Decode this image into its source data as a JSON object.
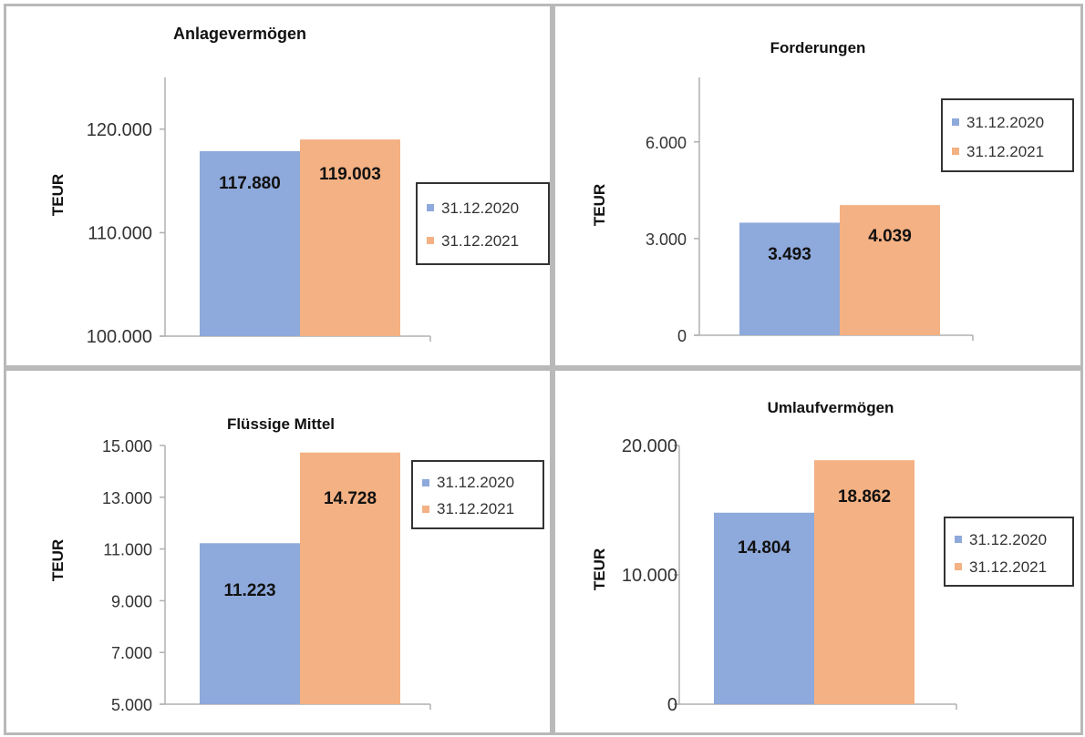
{
  "colors": {
    "series_2020": "#8ea9db",
    "series_2021": "#f4b183",
    "axis": "#b0b0b0",
    "panel_border": "#b9b9b9"
  },
  "chart_data": [
    {
      "type": "bar",
      "title": "Anlagevermögen",
      "ylabel": "TEUR",
      "ylim": [
        100000,
        125000
      ],
      "yticks": [
        100000,
        110000,
        120000
      ],
      "ytick_labels": [
        "100.000",
        "110.000",
        "120.000"
      ],
      "series": [
        {
          "name": "31.12.2020",
          "values": [
            117880
          ],
          "labels": [
            "117.880"
          ]
        },
        {
          "name": "31.12.2021",
          "values": [
            119003
          ],
          "labels": [
            "119.003"
          ]
        }
      ],
      "legend": "right"
    },
    {
      "type": "bar",
      "title": "Forderungen",
      "ylabel": "TEUR",
      "ylim": [
        0,
        8000
      ],
      "yticks": [
        0,
        3000,
        6000
      ],
      "ytick_labels": [
        "0",
        "3.000",
        "6.000"
      ],
      "series": [
        {
          "name": "31.12.2020",
          "values": [
            3493
          ],
          "labels": [
            "3.493"
          ]
        },
        {
          "name": "31.12.2021",
          "values": [
            4039
          ],
          "labels": [
            "4.039"
          ]
        }
      ],
      "legend": "top-right"
    },
    {
      "type": "bar",
      "title": "Flüssige Mittel",
      "ylabel": "TEUR",
      "ylim": [
        5000,
        15000
      ],
      "yticks": [
        5000,
        7000,
        9000,
        11000,
        13000,
        15000
      ],
      "ytick_labels": [
        "5.000",
        "7.000",
        "9.000",
        "11.000",
        "13.000",
        "15.000"
      ],
      "series": [
        {
          "name": "31.12.2020",
          "values": [
            11223
          ],
          "labels": [
            "11.223"
          ]
        },
        {
          "name": "31.12.2021",
          "values": [
            14728
          ],
          "labels": [
            "14.728"
          ]
        }
      ],
      "legend": "top-right"
    },
    {
      "type": "bar",
      "title": "Umlaufvermögen",
      "ylabel": "TEUR",
      "ylim": [
        0,
        20000
      ],
      "yticks": [
        0,
        10000,
        20000
      ],
      "ytick_labels": [
        "0",
        "10.000",
        "20.000"
      ],
      "series": [
        {
          "name": "31.12.2020",
          "values": [
            14804
          ],
          "labels": [
            "14.804"
          ]
        },
        {
          "name": "31.12.2021",
          "values": [
            18862
          ],
          "labels": [
            "18.862"
          ]
        }
      ],
      "legend": "right"
    }
  ]
}
